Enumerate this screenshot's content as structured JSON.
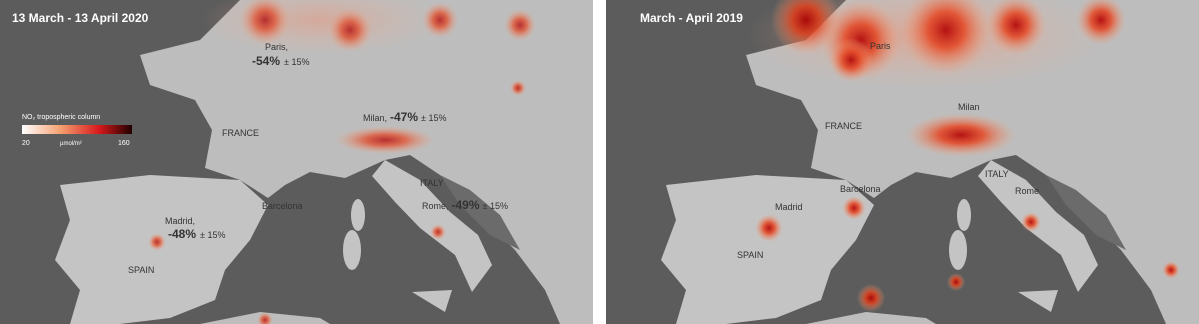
{
  "panels": [
    {
      "title": "13 March - 13 April 2020",
      "cities": [
        {
          "name": "Paris,",
          "change": "-54%",
          "uncertainty": "± 15%"
        },
        {
          "name": "Milan,",
          "change": "-47%",
          "uncertainty": "± 15%"
        },
        {
          "name": "Madrid,",
          "change": "-48%",
          "uncertainty": "± 15%"
        },
        {
          "name": "Rome,",
          "change": "-49%",
          "uncertainty": "± 15%"
        }
      ],
      "places": [
        "FRANCE",
        "ITALY",
        "SPAIN",
        "Barcelona"
      ],
      "legend": {
        "title": "NO₂ tropospheric column",
        "unit": "µmol/m²",
        "min": 20,
        "max": 160
      }
    },
    {
      "title": "March - April 2019",
      "places": [
        "Paris",
        "FRANCE",
        "Milan",
        "ITALY",
        "Rome",
        "Barcelona",
        "Madrid",
        "SPAIN"
      ]
    }
  ]
}
